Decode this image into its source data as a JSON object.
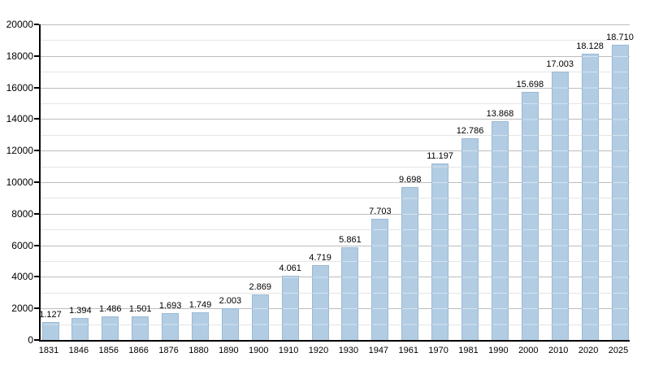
{
  "chart_data": {
    "type": "bar",
    "title": "",
    "xlabel": "",
    "ylabel": "",
    "categories": [
      "1831",
      "1846",
      "1856",
      "1866",
      "1876",
      "1880",
      "1890",
      "1900",
      "1910",
      "1920",
      "1930",
      "1947",
      "1961",
      "1970",
      "1981",
      "1990",
      "2000",
      "2010",
      "2020",
      "2025"
    ],
    "values": [
      1127,
      1394,
      1486,
      1501,
      1693,
      1749,
      2003,
      2869,
      4061,
      4719,
      5861,
      7703,
      9698,
      11197,
      12786,
      13868,
      15698,
      17003,
      18128,
      18710
    ],
    "value_labels": [
      "1.127",
      "1.394",
      "1.486",
      "1.501",
      "1.693",
      "1.749",
      "2.003",
      "2.869",
      "4.061",
      "4.719",
      "5.861",
      "7.703",
      "9.698",
      "11.197",
      "12.786",
      "13.868",
      "15.698",
      "17.003",
      "18.128",
      "18.710"
    ],
    "ylim": [
      0,
      20000
    ],
    "y_ticks": [
      0,
      2000,
      4000,
      6000,
      8000,
      10000,
      12000,
      14000,
      16000,
      18000,
      20000
    ],
    "minor_grid_step": 1000,
    "grid": true,
    "legend": false,
    "colors": {
      "bar_fill": "#b2cde3",
      "bar_border": "#9cb9d5",
      "bar_inner_line": "#d6e3f0",
      "grid_major": "#bdbdbd",
      "grid_minor": "#e5e5e5",
      "axis": "#000000",
      "text": "#000000",
      "background": "#ffffff"
    }
  }
}
